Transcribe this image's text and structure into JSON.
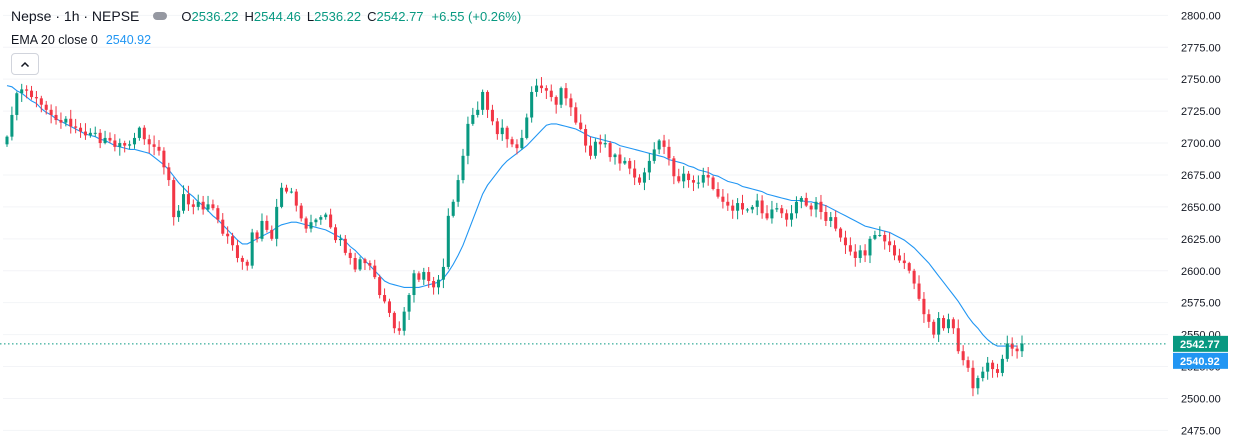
{
  "legend": {
    "symbol": "Nepse · 1h · NEPSE",
    "open_label": "O",
    "open": "2536.22",
    "high_label": "H",
    "high": "2544.46",
    "low_label": "L",
    "low": "2536.22",
    "close_label": "C",
    "close": "2542.77",
    "change": "+6.55 (+0.26%)"
  },
  "indicator": {
    "label": "EMA 20 close 0",
    "value": "2540.92"
  },
  "colors": {
    "up": "#089981",
    "down": "#f23645",
    "ema": "#2196f3",
    "price_tag": "#089981",
    "ema_tag": "#2196f3"
  },
  "chart_data": {
    "type": "candlestick",
    "title": "Nepse · 1h · NEPSE",
    "ylim": [
      2462,
      2812
    ],
    "y_ticks": [
      2475,
      2500,
      2525,
      2550,
      2575,
      2600,
      2625,
      2650,
      2675,
      2700,
      2725,
      2750,
      2775,
      2800
    ],
    "y_tick_labels": [
      "2475.00",
      "2500.00",
      "2525.00",
      "2550.00",
      "2575.00",
      "2600.00",
      "2625.00",
      "2650.00",
      "2675.00",
      "2700.00",
      "2725.00",
      "2750.00",
      "2775.00",
      "2800.00"
    ],
    "last_price": 2542.77,
    "last_price_label": "2542.77",
    "ema_value": 2540.92,
    "ema_label": "2540.92",
    "close": [
      2705,
      2722,
      2739,
      2742,
      2741,
      2736,
      2735,
      2730,
      2726,
      2722,
      2718,
      2716,
      2719,
      2713,
      2712,
      2709,
      2706,
      2708,
      2708,
      2700,
      2704,
      2702,
      2697,
      2700,
      2698,
      2699,
      2704,
      2712,
      2703,
      2699,
      2697,
      2694,
      2681,
      2671,
      2642,
      2647,
      2660,
      2652,
      2650,
      2654,
      2648,
      2652,
      2649,
      2640,
      2629,
      2627,
      2620,
      2610,
      2607,
      2604,
      2630,
      2625,
      2639,
      2632,
      2625,
      2650,
      2665,
      2662,
      2662,
      2651,
      2641,
      2633,
      2638,
      2640,
      2642,
      2644,
      2634,
      2624,
      2625,
      2614,
      2610,
      2601,
      2609,
      2606,
      2604,
      2595,
      2581,
      2576,
      2567,
      2555,
      2553,
      2568,
      2581,
      2598,
      2593,
      2599,
      2592,
      2587,
      2593,
      2603,
      2643,
      2654,
      2671,
      2690,
      2715,
      2722,
      2726,
      2740,
      2726,
      2717,
      2707,
      2712,
      2703,
      2699,
      2696,
      2704,
      2720,
      2740,
      2745,
      2743,
      2741,
      2736,
      2730,
      2743,
      2735,
      2728,
      2716,
      2711,
      2698,
      2690,
      2701,
      2699,
      2700,
      2689,
      2691,
      2684,
      2686,
      2680,
      2673,
      2669,
      2677,
      2686,
      2695,
      2702,
      2697,
      2688,
      2674,
      2670,
      2676,
      2671,
      2669,
      2669,
      2675,
      2673,
      2664,
      2658,
      2654,
      2651,
      2647,
      2653,
      2648,
      2648,
      2650,
      2655,
      2645,
      2641,
      2648,
      2649,
      2645,
      2640,
      2645,
      2654,
      2657,
      2651,
      2648,
      2654,
      2646,
      2639,
      2642,
      2633,
      2626,
      2620,
      2615,
      2610,
      2616,
      2612,
      2625,
      2628,
      2628,
      2623,
      2620,
      2612,
      2608,
      2606,
      2600,
      2590,
      2578,
      2566,
      2560,
      2550,
      2563,
      2555,
      2562,
      2555,
      2537,
      2530,
      2524,
      2508,
      2516,
      2521,
      2528,
      2523,
      2520,
      2531,
      2543,
      2539,
      2537,
      2543
    ],
    "ema": [
      2745,
      2744,
      2741,
      2739,
      2736,
      2733,
      2731,
      2727,
      2724,
      2722,
      2719,
      2717,
      2715,
      2713,
      2711,
      2709,
      2707,
      2706,
      2705,
      2703,
      2702,
      2700,
      2698,
      2697,
      2696,
      2695,
      2695,
      2694,
      2693,
      2692,
      2689,
      2686,
      2683,
      2679,
      2674,
      2669,
      2665,
      2661,
      2658,
      2654,
      2651,
      2647,
      2643,
      2640,
      2636,
      2632,
      2628,
      2624,
      2621,
      2621,
      2623,
      2625,
      2627,
      2629,
      2631,
      2634,
      2636,
      2637,
      2638,
      2638,
      2637,
      2636,
      2635,
      2634,
      2633,
      2632,
      2630,
      2628,
      2626,
      2623,
      2619,
      2616,
      2612,
      2608,
      2604,
      2600,
      2596,
      2592,
      2590,
      2589,
      2588,
      2587,
      2587,
      2587,
      2587,
      2588,
      2589,
      2590,
      2591,
      2594,
      2599,
      2605,
      2612,
      2620,
      2630,
      2640,
      2650,
      2660,
      2667,
      2672,
      2677,
      2682,
      2686,
      2689,
      2692,
      2695,
      2698,
      2702,
      2706,
      2710,
      2714,
      2715,
      2715,
      2714,
      2713,
      2712,
      2711,
      2709,
      2707,
      2705,
      2704,
      2703,
      2702,
      2701,
      2700,
      2698,
      2697,
      2696,
      2695,
      2694,
      2693,
      2692,
      2691,
      2690,
      2689,
      2687,
      2686,
      2685,
      2684,
      2682,
      2681,
      2679,
      2678,
      2677,
      2675,
      2674,
      2672,
      2670,
      2669,
      2668,
      2666,
      2665,
      2664,
      2663,
      2662,
      2660,
      2659,
      2658,
      2657,
      2656,
      2655,
      2655,
      2655,
      2654,
      2654,
      2653,
      2652,
      2651,
      2649,
      2647,
      2645,
      2643,
      2641,
      2639,
      2637,
      2635,
      2634,
      2633,
      2632,
      2631,
      2630,
      2628,
      2626,
      2624,
      2621,
      2618,
      2614,
      2610,
      2606,
      2601,
      2596,
      2591,
      2586,
      2581,
      2576,
      2570,
      2564,
      2559,
      2555,
      2550,
      2546,
      2543,
      2541,
      2541,
      2541,
      2541,
      2541
    ]
  }
}
